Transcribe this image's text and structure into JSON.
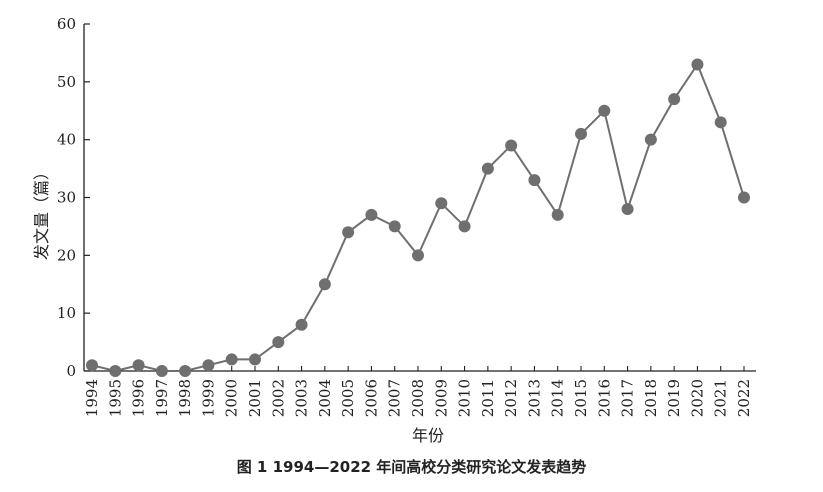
{
  "caption": "图 1   1994—2022 年间高校分类研究论文发表趋势",
  "chart_data": {
    "type": "line",
    "title": "",
    "xlabel": "年份",
    "ylabel": "发文量（篇）",
    "ylim": [
      0,
      60
    ],
    "yticks": [
      0,
      10,
      20,
      30,
      40,
      50,
      60
    ],
    "grid": false,
    "categories": [
      "1994",
      "1995",
      "1996",
      "1997",
      "1998",
      "1999",
      "2000",
      "2001",
      "2002",
      "2003",
      "2004",
      "2005",
      "2006",
      "2007",
      "2008",
      "2009",
      "2010",
      "2011",
      "2012",
      "2013",
      "2014",
      "2015",
      "2016",
      "2017",
      "2018",
      "2019",
      "2020",
      "2021",
      "2022"
    ],
    "series": [
      {
        "values": [
          1,
          0,
          1,
          0,
          0,
          1,
          2,
          2,
          5,
          8,
          15,
          24,
          27,
          25,
          20,
          29,
          25,
          35,
          39,
          33,
          27,
          41,
          45,
          28,
          40,
          47,
          53,
          43,
          30
        ],
        "color": "#6f6f6f"
      }
    ]
  }
}
